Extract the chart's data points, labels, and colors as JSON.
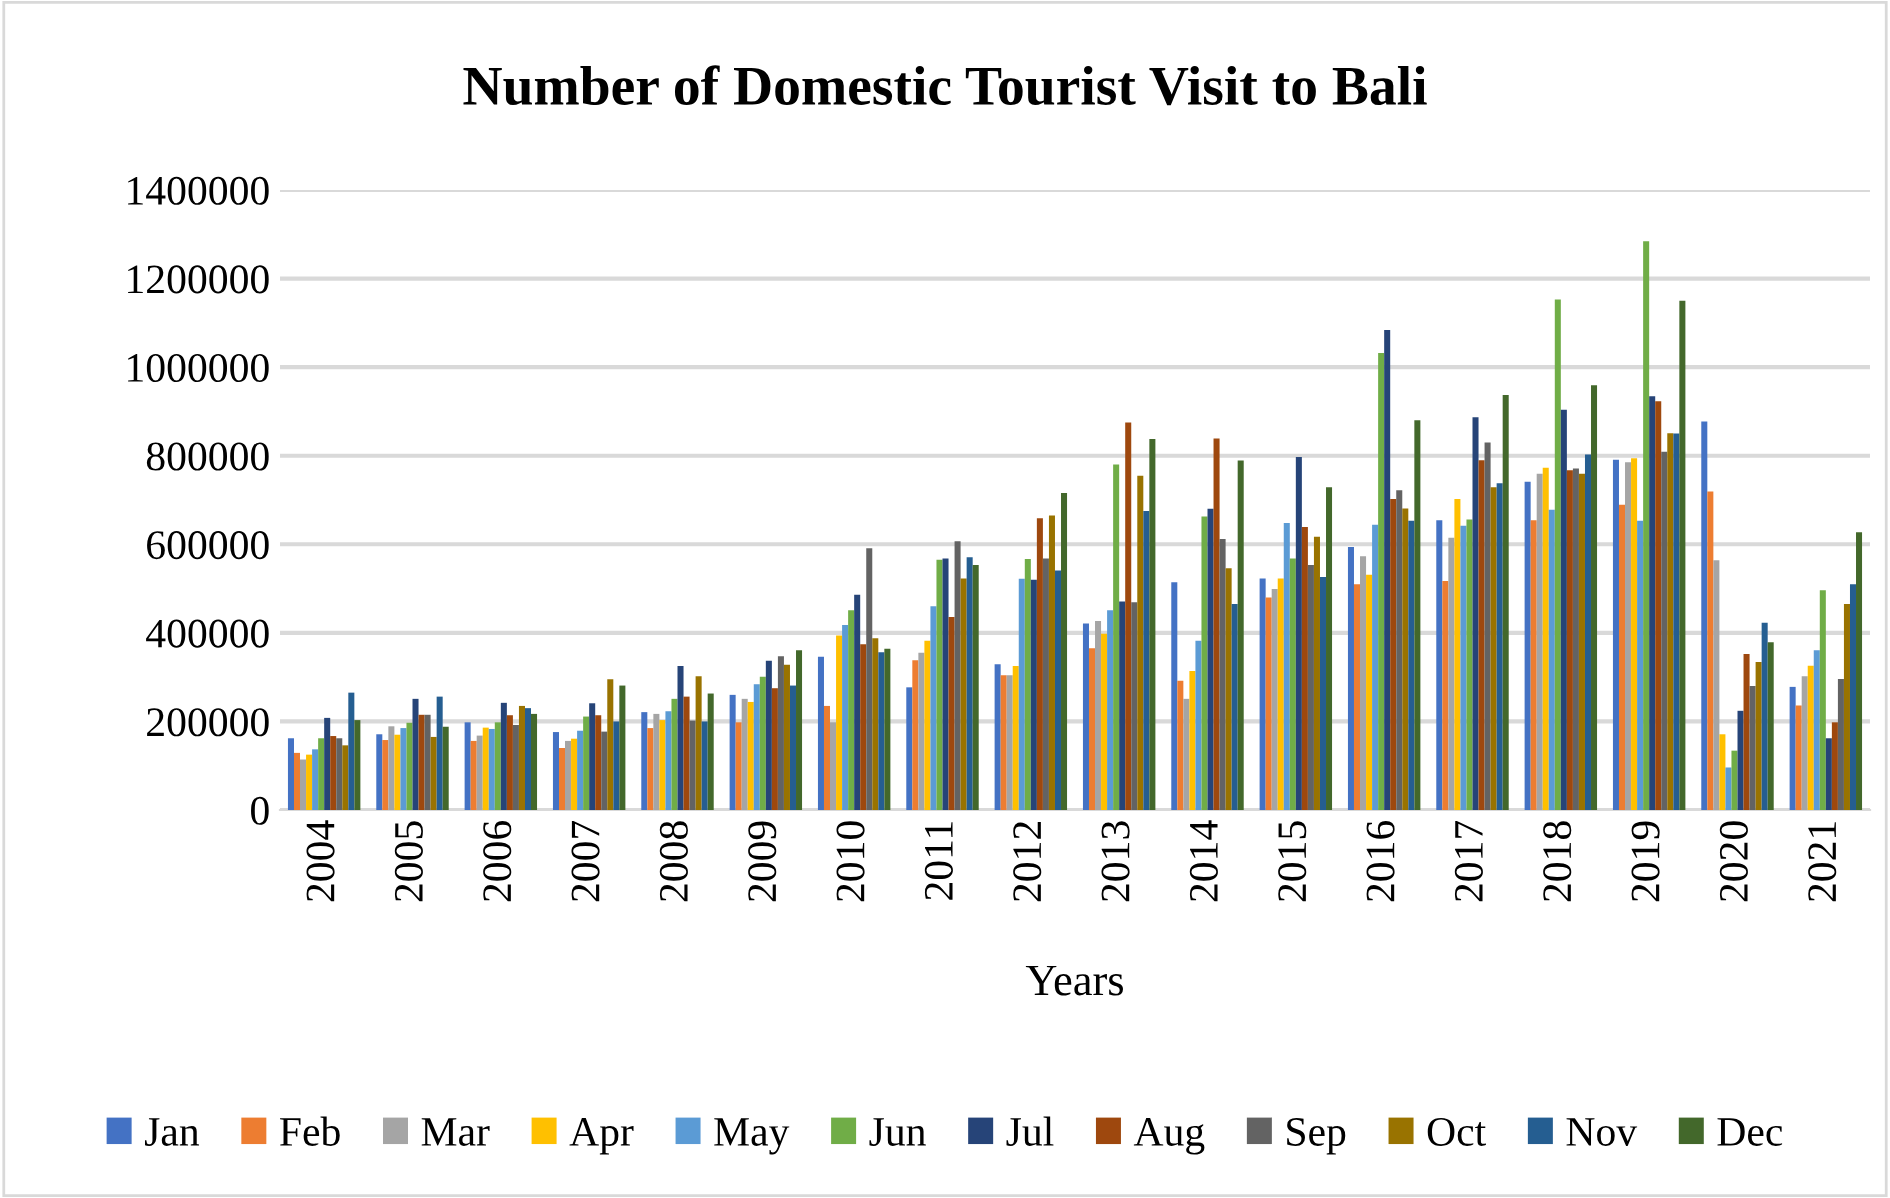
{
  "chart_data": {
    "type": "bar",
    "title": "Number of Domestic Tourist Visit to Bali",
    "xlabel": "Years",
    "categories": [
      "2004",
      "2005",
      "2006",
      "2007",
      "2008",
      "2009",
      "2010",
      "2011",
      "2012",
      "2013",
      "2014",
      "2015",
      "2016",
      "2017",
      "2018",
      "2019",
      "2020",
      "2021"
    ],
    "ylim": [
      0,
      1400000
    ],
    "yticks": [
      0,
      200000,
      400000,
      600000,
      800000,
      1000000,
      1200000,
      1400000
    ],
    "grid": "y",
    "legend": "bottom",
    "series": [
      {
        "name": "Jan",
        "color": "#4472c4",
        "values": [
          162000,
          171000,
          198000,
          176000,
          221000,
          260000,
          346000,
          277000,
          329000,
          421000,
          514000,
          523000,
          594000,
          654000,
          741000,
          791000,
          877000,
          278000
        ]
      },
      {
        "name": "Feb",
        "color": "#ed7d31",
        "values": [
          129000,
          158000,
          156000,
          140000,
          185000,
          198000,
          235000,
          338000,
          304000,
          365000,
          292000,
          480000,
          510000,
          517000,
          654000,
          689000,
          719000,
          236000
        ]
      },
      {
        "name": "Mar",
        "color": "#a5a5a5",
        "values": [
          114000,
          189000,
          168000,
          156000,
          217000,
          251000,
          198000,
          355000,
          304000,
          427000,
          251000,
          499000,
          573000,
          615000,
          759000,
          785000,
          564000,
          302000
        ]
      },
      {
        "name": "Apr",
        "color": "#ffc000",
        "values": [
          125000,
          170000,
          186000,
          161000,
          203000,
          244000,
          394000,
          382000,
          325000,
          398000,
          314000,
          523000,
          531000,
          702000,
          773000,
          794000,
          171000,
          326000
        ]
      },
      {
        "name": "May",
        "color": "#5b9bd5",
        "values": [
          137000,
          185000,
          183000,
          179000,
          223000,
          284000,
          418000,
          460000,
          522000,
          451000,
          382000,
          648000,
          644000,
          642000,
          678000,
          653000,
          96000,
          361000
        ]
      },
      {
        "name": "Jun",
        "color": "#70ad47",
        "values": [
          162000,
          197000,
          198000,
          211000,
          251000,
          301000,
          451000,
          565000,
          567000,
          780000,
          663000,
          568000,
          1032000,
          656000,
          1153000,
          1284000,
          134000,
          496000
        ]
      },
      {
        "name": "Jul",
        "color": "#264478",
        "values": [
          208000,
          251000,
          242000,
          241000,
          325000,
          337000,
          486000,
          568000,
          520000,
          471000,
          680000,
          797000,
          1084000,
          887000,
          904000,
          934000,
          224000,
          162000
        ]
      },
      {
        "name": "Aug",
        "color": "#9e480e",
        "values": [
          167000,
          215000,
          214000,
          214000,
          256000,
          275000,
          374000,
          436000,
          659000,
          875000,
          839000,
          639000,
          702000,
          790000,
          767000,
          923000,
          352000,
          198000
        ]
      },
      {
        "name": "Sep",
        "color": "#636363",
        "values": [
          162000,
          215000,
          192000,
          177000,
          202000,
          347000,
          591000,
          607000,
          568000,
          469000,
          612000,
          553000,
          722000,
          830000,
          771000,
          809000,
          280000,
          296000
        ]
      },
      {
        "name": "Oct",
        "color": "#997300",
        "values": [
          146000,
          165000,
          235000,
          295000,
          302000,
          328000,
          388000,
          523000,
          665000,
          755000,
          546000,
          617000,
          681000,
          729000,
          759000,
          851000,
          334000,
          465000
        ]
      },
      {
        "name": "Nov",
        "color": "#255e91",
        "values": [
          265000,
          256000,
          230000,
          200000,
          200000,
          281000,
          356000,
          571000,
          541000,
          675000,
          465000,
          526000,
          653000,
          738000,
          803000,
          850000,
          423000,
          510000
        ]
      },
      {
        "name": "Dec",
        "color": "#43682b",
        "values": [
          203000,
          188000,
          217000,
          281000,
          263000,
          361000,
          364000,
          553000,
          716000,
          838000,
          789000,
          729000,
          880000,
          937000,
          959000,
          1150000,
          379000,
          627000
        ]
      }
    ]
  }
}
